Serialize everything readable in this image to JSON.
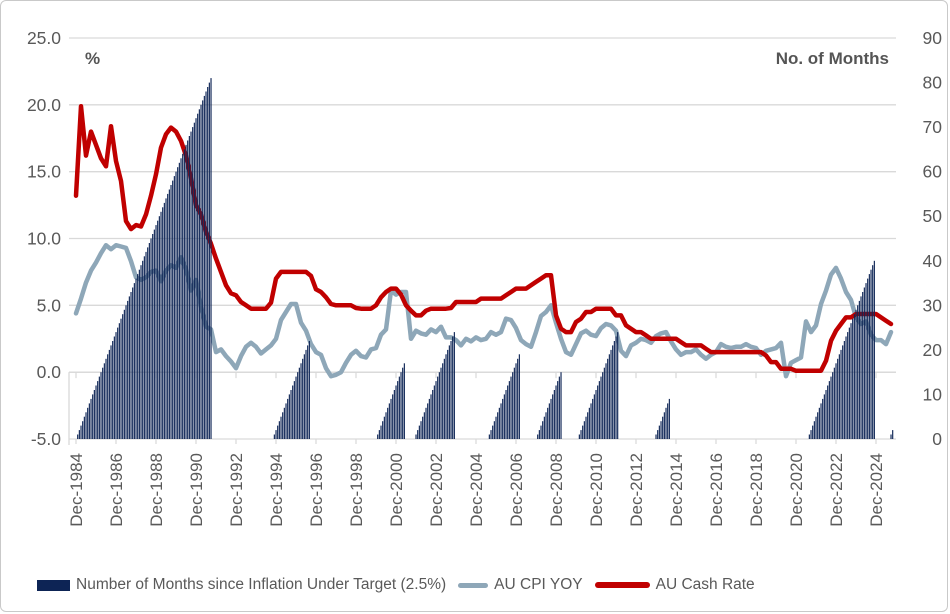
{
  "chart_data": {
    "type": "combo",
    "x_axis": {
      "start": "Dec-1984",
      "end": "Oct-2025",
      "tick_labels": [
        "Dec-1984",
        "Dec-1986",
        "Dec-1988",
        "Dec-1990",
        "Dec-1992",
        "Dec-1994",
        "Dec-1996",
        "Dec-1998",
        "Dec-2000",
        "Dec-2002",
        "Dec-2004",
        "Dec-2006",
        "Dec-2008",
        "Dec-2010",
        "Dec-2012",
        "Dec-2014",
        "Dec-2016",
        "Dec-2018",
        "Dec-2020",
        "Dec-2022",
        "Dec-2024"
      ],
      "tick_spacing_months": 24
    },
    "left_axis": {
      "label": "%",
      "min": -5,
      "max": 25,
      "ticks": [
        "25.0",
        "20.0",
        "15.0",
        "10.0",
        "5.0",
        "0.0",
        "-5.0"
      ],
      "grid": true
    },
    "right_axis": {
      "label": "No. of Months",
      "min": 0,
      "max": 90,
      "ticks": [
        "90",
        "80",
        "70",
        "60",
        "50",
        "40",
        "30",
        "20",
        "10",
        "0"
      ]
    },
    "series": [
      {
        "name": "Number of Months since Inflation Under Target (2.5%)",
        "type": "bar",
        "axis": "right",
        "color": "#0d2455",
        "frequency": "monthly",
        "unit": "months",
        "ramps": [
          {
            "from": "Jan-1985",
            "to": "Sep-1991",
            "start_offset_months": 1,
            "months": 81
          },
          {
            "from": "Nov-1994",
            "to": "Aug-1996",
            "start_offset_months": 119,
            "months": 22
          },
          {
            "from": "Jan-2000",
            "to": "May-2001",
            "start_offset_months": 181,
            "months": 17
          },
          {
            "from": "Dec-2001",
            "to": "Nov-2003",
            "start_offset_months": 204,
            "months": 24
          },
          {
            "from": "Aug-2005",
            "to": "Feb-2007",
            "start_offset_months": 248,
            "months": 19
          },
          {
            "from": "Jan-2008",
            "to": "Mar-2009",
            "start_offset_months": 277,
            "months": 15
          },
          {
            "from": "Feb-2010",
            "to": "Jan-2012",
            "start_offset_months": 302,
            "months": 24
          },
          {
            "from": "Dec-2013",
            "to": "Aug-2014",
            "start_offset_months": 348,
            "months": 9
          },
          {
            "from": "Aug-2021",
            "to": "Nov-2024",
            "start_offset_months": 440,
            "months": 40
          },
          {
            "from": "Sep-2025",
            "to": "Oct-2025",
            "start_offset_months": 489,
            "months": 2
          }
        ]
      },
      {
        "name": "AU CPI YOY",
        "type": "line",
        "axis": "left",
        "color": "#8ea7b8",
        "frequency": "quarterly",
        "unit": "%",
        "values": [
          4.4,
          5.5,
          6.7,
          7.6,
          8.2,
          8.9,
          9.5,
          9.2,
          9.5,
          9.4,
          9.3,
          8.3,
          7.1,
          6.9,
          7.1,
          7.5,
          7.6,
          6.8,
          7.6,
          8.0,
          7.8,
          8.6,
          7.7,
          6.1,
          6.9,
          4.9,
          3.4,
          3.2,
          1.5,
          1.7,
          1.2,
          0.8,
          0.3,
          1.2,
          1.9,
          2.2,
          1.9,
          1.4,
          1.7,
          2.0,
          2.5,
          3.9,
          4.5,
          5.1,
          5.1,
          3.7,
          3.1,
          2.1,
          1.5,
          1.3,
          0.3,
          -0.3,
          -0.2,
          0.0,
          0.7,
          1.3,
          1.6,
          1.2,
          1.1,
          1.7,
          1.8,
          2.8,
          3.2,
          6.1,
          5.8,
          6.0,
          6.0,
          2.5,
          3.1,
          2.9,
          2.8,
          3.2,
          3.0,
          3.4,
          2.6,
          2.6,
          2.4,
          2.0,
          2.5,
          2.3,
          2.6,
          2.4,
          2.5,
          3.0,
          2.8,
          3.0,
          4.0,
          3.9,
          3.3,
          2.4,
          2.1,
          1.9,
          3.0,
          4.2,
          4.5,
          5.0,
          3.7,
          2.5,
          1.5,
          1.3,
          2.1,
          2.9,
          3.1,
          2.8,
          2.7,
          3.3,
          3.6,
          3.5,
          3.1,
          1.6,
          1.2,
          2.0,
          2.2,
          2.5,
          2.4,
          2.2,
          2.7,
          2.9,
          3.0,
          2.3,
          1.7,
          1.3,
          1.5,
          1.5,
          1.7,
          1.3,
          1.0,
          1.3,
          1.5,
          2.1,
          1.9,
          1.8,
          1.9,
          1.9,
          2.1,
          1.9,
          1.8,
          1.3,
          1.6,
          1.7,
          1.8,
          2.2,
          -0.3,
          0.7,
          0.9,
          1.1,
          3.8,
          3.0,
          3.5,
          5.1,
          6.1,
          7.3,
          7.8,
          7.0,
          6.0,
          5.4,
          4.1,
          3.6,
          3.8,
          2.8,
          2.4,
          2.4,
          2.1,
          3.0
        ]
      },
      {
        "name": "AU Cash Rate",
        "type": "line",
        "axis": "left",
        "color": "#c00000",
        "frequency": "quarterly",
        "unit": "%",
        "values": [
          13.2,
          19.9,
          16.2,
          18.0,
          17.0,
          16.0,
          15.4,
          18.4,
          15.8,
          14.3,
          11.3,
          10.7,
          11.0,
          10.9,
          11.8,
          13.2,
          14.8,
          16.8,
          17.8,
          18.3,
          18.0,
          17.3,
          16.2,
          14.5,
          12.5,
          11.8,
          10.5,
          9.6,
          8.5,
          7.5,
          6.5,
          5.9,
          5.75,
          5.25,
          5.0,
          4.75,
          4.75,
          4.75,
          4.75,
          5.2,
          7.0,
          7.5,
          7.5,
          7.5,
          7.5,
          7.5,
          7.5,
          7.2,
          6.2,
          6.0,
          5.6,
          5.1,
          5.0,
          5.0,
          5.0,
          5.0,
          4.8,
          4.75,
          4.75,
          4.75,
          5.0,
          5.6,
          6.0,
          6.25,
          6.25,
          5.8,
          5.0,
          4.6,
          4.25,
          4.25,
          4.6,
          4.75,
          4.75,
          4.75,
          4.75,
          4.8,
          5.25,
          5.25,
          5.25,
          5.25,
          5.25,
          5.5,
          5.5,
          5.5,
          5.5,
          5.5,
          5.75,
          6.0,
          6.25,
          6.25,
          6.25,
          6.5,
          6.75,
          7.0,
          7.25,
          7.25,
          4.25,
          3.25,
          3.0,
          3.0,
          3.75,
          4.0,
          4.5,
          4.5,
          4.75,
          4.75,
          4.75,
          4.75,
          4.25,
          4.25,
          3.5,
          3.25,
          3.0,
          3.0,
          2.75,
          2.5,
          2.5,
          2.5,
          2.5,
          2.5,
          2.5,
          2.25,
          2.0,
          2.0,
          2.0,
          2.0,
          1.75,
          1.5,
          1.5,
          1.5,
          1.5,
          1.5,
          1.5,
          1.5,
          1.5,
          1.5,
          1.5,
          1.5,
          1.25,
          0.75,
          0.75,
          0.25,
          0.25,
          0.25,
          0.1,
          0.1,
          0.1,
          0.1,
          0.1,
          0.1,
          0.85,
          2.35,
          3.1,
          3.6,
          4.1,
          4.1,
          4.35,
          4.35,
          4.35,
          4.35,
          4.35,
          4.1,
          3.85,
          3.6
        ]
      }
    ]
  },
  "legend": {
    "items": [
      {
        "label": "Number of Months since Inflation Under Target (2.5%)",
        "color": "#0d2455",
        "swatch": "rect"
      },
      {
        "label": "AU CPI YOY",
        "color": "#8ea7b8",
        "swatch": "line"
      },
      {
        "label": "AU Cash Rate",
        "color": "#c00000",
        "swatch": "line"
      }
    ]
  },
  "colors": {
    "bars": "#0d2455",
    "cpi_line": "#8ea7b8",
    "cash_line": "#c00000",
    "gridline": "#d9d9d9",
    "axis_text": "#595959",
    "axis_title": "#555555",
    "card_border": "#c9c9c9"
  }
}
